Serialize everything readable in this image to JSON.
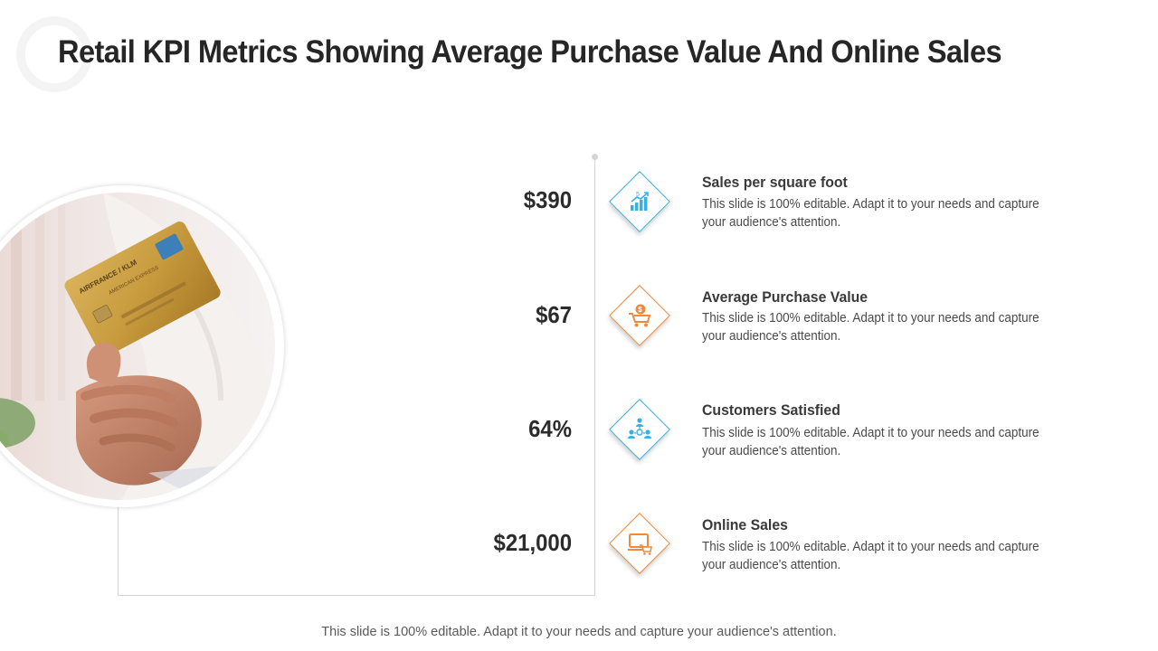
{
  "title": "Retail KPI Metrics Showing Average Purchase Value And Online Sales",
  "metrics": [
    {
      "value": "$390",
      "heading": "Sales per square foot",
      "description": "This slide is 100% editable. Adapt it to your needs and capture your audience's attention.",
      "icon": "growth-chart-icon",
      "accent": "#3bb0e0"
    },
    {
      "value": "$67",
      "heading": "Average Purchase Value",
      "description": "This slide is 100% editable. Adapt it to your needs and capture your audience's attention.",
      "icon": "cart-dollar-icon",
      "accent": "#ef8a3c"
    },
    {
      "value": "64%",
      "heading": "Customers Satisfied",
      "description": "This slide is 100% editable. Adapt it to your needs and capture your audience's attention.",
      "icon": "customers-network-icon",
      "accent": "#3bb0e0"
    },
    {
      "value": "$21,000",
      "heading": "Online Sales",
      "description": "This slide is 100% editable. Adapt it to your needs and capture your audience's attention.",
      "icon": "laptop-cart-icon",
      "accent": "#ef8a3c"
    }
  ],
  "footer": "This slide is 100% editable. Adapt it to your needs and capture your audience's attention.",
  "photo": {
    "card_brand_text": "AIRFRANCE / KLM",
    "card_issuer_text": "AMERICAN EXPRESS"
  }
}
